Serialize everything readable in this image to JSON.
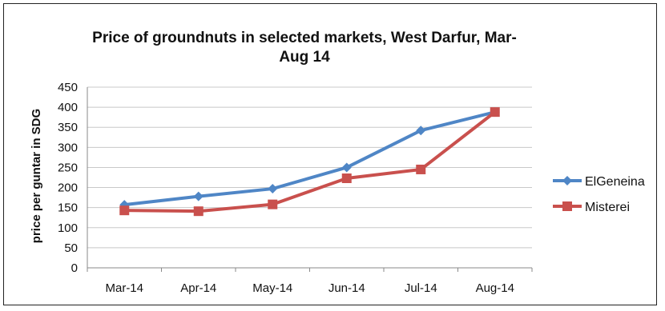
{
  "chart_data": {
    "type": "line",
    "title": "Price of groundnuts in selected markets, West Darfur, Mar-Aug 14",
    "xlabel": "",
    "ylabel": "price per guntar in SDG",
    "categories": [
      "Mar-14",
      "Apr-14",
      "May-14",
      "Jun-14",
      "Jul-14",
      "Aug-14"
    ],
    "ylim": [
      0,
      450
    ],
    "yticks": [
      0,
      50,
      100,
      150,
      200,
      250,
      300,
      350,
      400,
      450
    ],
    "grid": true,
    "legend_position": "right",
    "series": [
      {
        "name": "ElGeneina",
        "color": "#4f86c6",
        "marker": "diamond",
        "values": [
          157,
          178,
          197,
          250,
          342,
          388
        ]
      },
      {
        "name": "Misterei",
        "color": "#c9504d",
        "marker": "square",
        "values": [
          143,
          141,
          158,
          223,
          245,
          388
        ]
      }
    ]
  }
}
